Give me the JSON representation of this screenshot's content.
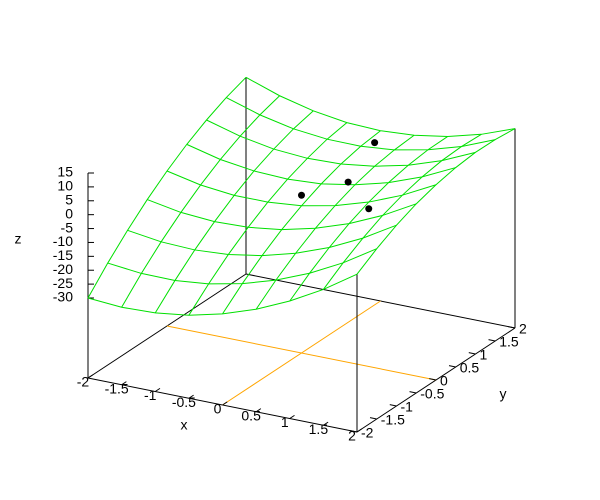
{
  "chart_data": {
    "type": "surface3d",
    "x_label": "x",
    "y_label": "y",
    "z_label": "z",
    "x": [
      -2,
      -1.5,
      -1,
      -0.5,
      0,
      0.5,
      1,
      1.5,
      2
    ],
    "y": [
      -2,
      -1.5,
      -1,
      -0.5,
      0,
      0.5,
      1,
      1.5,
      2
    ],
    "z": [
      [
        -30.0,
        -30.9,
        -30.5,
        -28.9,
        -26.0,
        -21.9,
        -16.5,
        -9.9,
        -2.0
      ],
      [
        -22.1,
        -23.4,
        -23.5,
        -22.3,
        -19.8,
        -16.1,
        -11.2,
        -5.0,
        2.5
      ],
      [
        -15.0,
        -16.7,
        -17.2,
        -16.4,
        -14.4,
        -11.1,
        -6.6,
        -0.8,
        6.3
      ],
      [
        -8.6,
        -10.8,
        -11.7,
        -11.3,
        -9.7,
        -6.8,
        -2.7,
        2.7,
        9.3
      ],
      [
        -3.0,
        -5.6,
        -6.9,
        -6.9,
        -5.8,
        -3.3,
        0.4,
        5.3,
        11.5
      ],
      [
        1.9,
        -1.1,
        -2.8,
        -3.3,
        -2.6,
        -0.5,
        2.7,
        7.2,
        13.0
      ],
      [
        6.0,
        2.6,
        0.4,
        -0.5,
        -0.1,
        1.5,
        4.3,
        8.4,
        13.8
      ],
      [
        9.4,
        5.6,
        3.0,
        1.7,
        1.6,
        2.7,
        5.2,
        8.8,
        13.7
      ],
      [
        12.0,
        7.8,
        4.8,
        3.0,
        2.5,
        3.3,
        5.3,
        8.5,
        13.0
      ]
    ],
    "surface_color": "#00e000",
    "points": {
      "x": [
        0,
        0.4,
        0.5,
        1
      ],
      "y": [
        0,
        0.5,
        1,
        0
      ],
      "z": [
        -2,
        0,
        10,
        -2
      ],
      "color": "#000000"
    },
    "zero_axes": true,
    "zero_axis_color": "#ffa500",
    "xlim": [
      -2,
      2
    ],
    "ylim": [
      -2,
      2
    ],
    "zlim": [
      -30,
      15
    ],
    "xticks": [
      -2,
      -1.5,
      -1,
      -0.5,
      0,
      0.5,
      1,
      1.5,
      2
    ],
    "yticks": [
      -2,
      -1.5,
      -1,
      -0.5,
      0,
      0.5,
      1,
      1.5,
      2
    ],
    "zticks": [
      -30,
      -25,
      -20,
      -15,
      -10,
      -5,
      0,
      5,
      10,
      15
    ]
  }
}
